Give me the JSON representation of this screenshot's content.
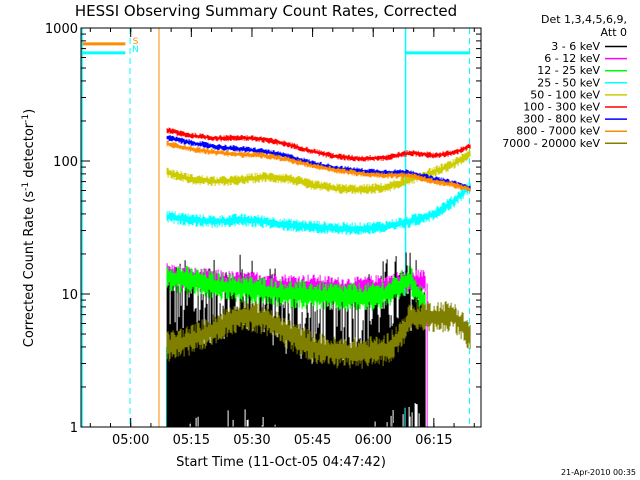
{
  "chart_data": {
    "type": "line",
    "title": "HESSI Observing Summary Count Rates, Corrected",
    "xlabel": "Start Time (11-Oct-05 04:47:42)",
    "ylabel": "Corrected Count Rate (s",
    "ylabel_sup1": "-1",
    "ylabel_mid": " detector",
    "ylabel_sup2": "-1",
    "ylabel_end": ")",
    "y_scale": "log",
    "ylim": [
      1,
      1000
    ],
    "y_ticks": [
      {
        "value": 1,
        "label": "1"
      },
      {
        "value": 10,
        "label": "10"
      },
      {
        "value": 100,
        "label": "100"
      },
      {
        "value": 1000,
        "label": "1000"
      }
    ],
    "xlim": [
      "04:47:42",
      "06:26:40"
    ],
    "x_ticks": [
      {
        "value": "05:00",
        "label": "05:00"
      },
      {
        "value": "05:15",
        "label": "05:15"
      },
      {
        "value": "05:30",
        "label": "05:30"
      },
      {
        "value": "05:45",
        "label": "05:45"
      },
      {
        "value": "06:00",
        "label": "06:00"
      },
      {
        "value": "06:15",
        "label": "06:15"
      }
    ],
    "legend_placement": "right",
    "legend_header": [
      "Det 1,3,4,5,6,9,",
      "Att 0"
    ],
    "series": [
      {
        "name": "3 - 6 keV",
        "color": "#000000",
        "noise": 0.9,
        "x": [
          "05:09",
          "05:12",
          "05:15",
          "05:18",
          "05:21",
          "05:24",
          "05:27",
          "05:30",
          "05:33",
          "05:36",
          "05:39",
          "05:42",
          "05:45",
          "05:48",
          "05:51",
          "05:54",
          "05:57",
          "06:00",
          "06:03",
          "06:06",
          "06:09",
          "06:12",
          "06:13"
        ],
        "y": [
          2.5,
          2.4,
          2.3,
          2.2,
          2.3,
          2.5,
          2.6,
          2.5,
          2.3,
          2.0,
          1.8,
          1.6,
          1.5,
          1.5,
          1.6,
          1.7,
          1.8,
          2.1,
          2.4,
          2.6,
          2.8,
          2.9,
          2.9
        ]
      },
      {
        "name": "6 - 12 keV",
        "color": "#ff00ff",
        "noise": 0.09,
        "x": [
          "05:09",
          "05:15",
          "05:21",
          "05:27",
          "05:33",
          "05:39",
          "05:45",
          "05:51",
          "05:57",
          "06:03",
          "06:09",
          "06:13"
        ],
        "y": [
          14,
          13,
          12.5,
          12,
          12,
          11.5,
          11.5,
          11,
          11,
          11.5,
          12.5,
          12.5
        ]
      },
      {
        "name": "12 - 25 keV",
        "color": "#00ff00",
        "noise": 0.11,
        "x": [
          "05:09",
          "05:15",
          "05:21",
          "05:27",
          "05:33",
          "05:39",
          "05:45",
          "05:51",
          "05:57",
          "06:00",
          "06:03",
          "06:06",
          "06:09",
          "06:12",
          "06:13"
        ],
        "y": [
          13.5,
          12.5,
          11.5,
          11,
          10.5,
          10,
          9.8,
          9.5,
          9.5,
          9.5,
          10,
          11,
          13,
          9,
          9
        ]
      },
      {
        "name": "25 - 50 keV",
        "color": "#00ffff",
        "noise": 0.05,
        "x": [
          "05:09",
          "05:15",
          "05:21",
          "05:27",
          "05:33",
          "05:39",
          "05:45",
          "05:51",
          "05:57",
          "06:03",
          "06:09",
          "06:15",
          "06:20",
          "06:24"
        ],
        "y": [
          38,
          36,
          35,
          36,
          35,
          33,
          32,
          31,
          31,
          32,
          35,
          40,
          50,
          65
        ]
      },
      {
        "name": "50 - 100 keV",
        "color": "#cccc00",
        "noise": 0.04,
        "x": [
          "05:09",
          "05:15",
          "05:21",
          "05:27",
          "05:33",
          "05:39",
          "05:45",
          "05:51",
          "05:57",
          "06:03",
          "06:09",
          "06:15",
          "06:20",
          "06:24"
        ],
        "y": [
          82,
          73,
          70,
          72,
          76,
          74,
          66,
          62,
          61,
          63,
          72,
          83,
          95,
          115
        ]
      },
      {
        "name": "100 - 300 keV",
        "color": "#ff0000",
        "noise": 0.025,
        "x": [
          "05:09",
          "05:15",
          "05:21",
          "05:27",
          "05:33",
          "05:39",
          "05:45",
          "05:51",
          "05:57",
          "06:03",
          "06:09",
          "06:12",
          "06:15",
          "06:20",
          "06:24"
        ],
        "y": [
          170,
          155,
          148,
          150,
          145,
          133,
          118,
          108,
          104,
          106,
          115,
          113,
          110,
          115,
          130
        ]
      },
      {
        "name": "300 - 800 keV",
        "color": "#0000ff",
        "noise": 0.025,
        "x": [
          "05:09",
          "05:15",
          "05:21",
          "05:27",
          "05:33",
          "05:39",
          "05:45",
          "05:51",
          "05:57",
          "06:03",
          "06:09",
          "06:15",
          "06:20",
          "06:24"
        ],
        "y": [
          150,
          137,
          128,
          123,
          118,
          108,
          96,
          88,
          84,
          82,
          82,
          73,
          68,
          62
        ]
      },
      {
        "name": "800 - 7000 keV",
        "color": "#ff8c00",
        "noise": 0.025,
        "x": [
          "05:09",
          "05:15",
          "05:21",
          "05:27",
          "05:33",
          "05:39",
          "05:45",
          "05:51",
          "05:57",
          "06:03",
          "06:09",
          "06:15",
          "06:20",
          "06:24"
        ],
        "y": [
          135,
          123,
          116,
          112,
          110,
          102,
          92,
          85,
          80,
          78,
          78,
          70,
          66,
          61
        ]
      },
      {
        "name": "7000 - 20000 keV",
        "color": "#808000",
        "noise": 0.12,
        "x": [
          "05:09",
          "05:15",
          "05:21",
          "05:27",
          "05:33",
          "05:39",
          "05:45",
          "05:51",
          "05:57",
          "06:03",
          "06:06",
          "06:09",
          "06:12",
          "06:15",
          "06:20",
          "06:24"
        ],
        "y": [
          4,
          4.5,
          5.5,
          7,
          6.5,
          5,
          4,
          3.6,
          3.6,
          3.8,
          4.5,
          6.5,
          6.8,
          6.8,
          6.8,
          4.8
        ]
      }
    ],
    "annotations": [
      "S",
      "N"
    ],
    "footer": "21-Apr-2010 00:35"
  }
}
